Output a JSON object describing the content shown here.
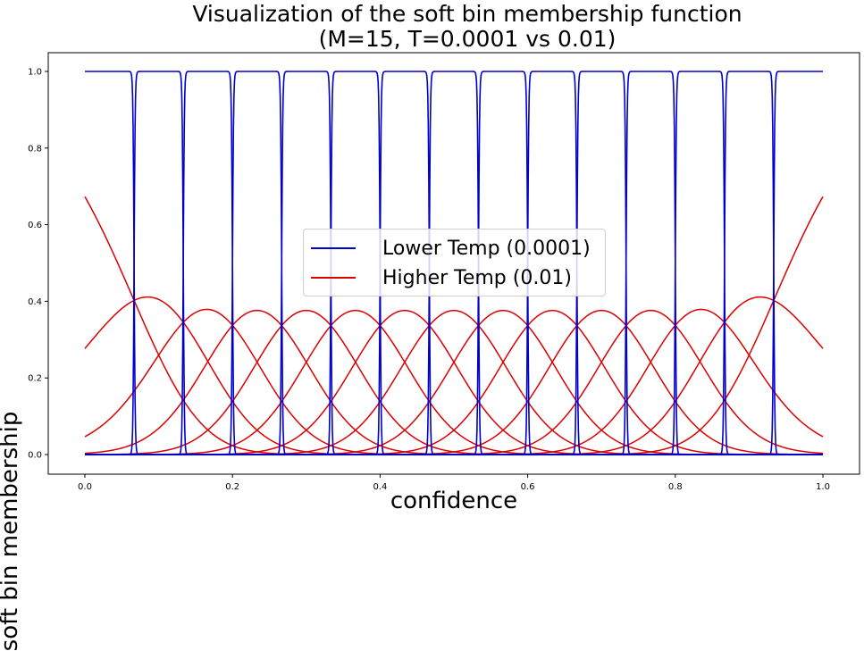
{
  "chart_data": {
    "type": "line",
    "title": "Visualization of the soft bin membership function\n(M=15, T=0.0001 vs 0.01)",
    "title_lines": [
      "Visualization of the soft bin membership function",
      "(M=15, T=0.0001 vs 0.01)"
    ],
    "xlabel": "confidence",
    "ylabel": "soft bin membership",
    "xlim": [
      -0.05,
      1.05
    ],
    "ylim": [
      -0.05,
      1.05
    ],
    "x_ticks": [
      0.0,
      0.2,
      0.4,
      0.6,
      0.8,
      1.0
    ],
    "x_tick_labels": [
      "0.0",
      "0.2",
      "0.4",
      "0.6",
      "0.8",
      "1.0"
    ],
    "y_ticks": [
      0.0,
      0.2,
      0.4,
      0.6,
      0.8,
      1.0
    ],
    "y_tick_labels": [
      "0.0",
      "0.2",
      "0.4",
      "0.6",
      "0.8",
      "1.0"
    ],
    "grid": false,
    "legend_position": "center",
    "num_bins": 15,
    "bin_centers": [
      0.0333,
      0.1,
      0.1667,
      0.2333,
      0.3,
      0.3667,
      0.4333,
      0.5,
      0.5667,
      0.6333,
      0.7,
      0.7667,
      0.8333,
      0.9,
      0.9667
    ],
    "bin_edges": [
      0.0667,
      0.1333,
      0.2,
      0.2667,
      0.3333,
      0.4,
      0.4667,
      0.5333,
      0.6,
      0.6667,
      0.7333,
      0.8,
      0.8667,
      0.9333
    ],
    "x_range": [
      0.0,
      1.0
    ],
    "series": [
      {
        "name": "Lower Temp (0.0001)",
        "temperature": 0.0001,
        "color": "#0000cc",
        "description": "15 near-rectangular bin membership curves, each ~1.0 inside its bin and ~0.0 outside",
        "peak_value": 1.0
      },
      {
        "name": "Higher Temp (0.01)",
        "temperature": 0.01,
        "color": "#dd0000",
        "description": "15 smooth bell-shaped bin membership curves overlapping neighbours",
        "peak_values": [
          0.67,
          0.41,
          0.38,
          0.38,
          0.38,
          0.38,
          0.38,
          0.38,
          0.38,
          0.38,
          0.38,
          0.38,
          0.38,
          0.41,
          0.67
        ],
        "values_at_x0": [
          0.673,
          0.277,
          0.047,
          0.003
        ],
        "values_at_x1": [
          0.003,
          0.047,
          0.277,
          0.673
        ],
        "crossing_value_between_neighbours": 0.34
      }
    ]
  },
  "legend": {
    "items": [
      {
        "label": "Lower Temp (0.0001)",
        "color": "#0000cc"
      },
      {
        "label": "Higher Temp (0.01)",
        "color": "#dd0000"
      }
    ]
  }
}
